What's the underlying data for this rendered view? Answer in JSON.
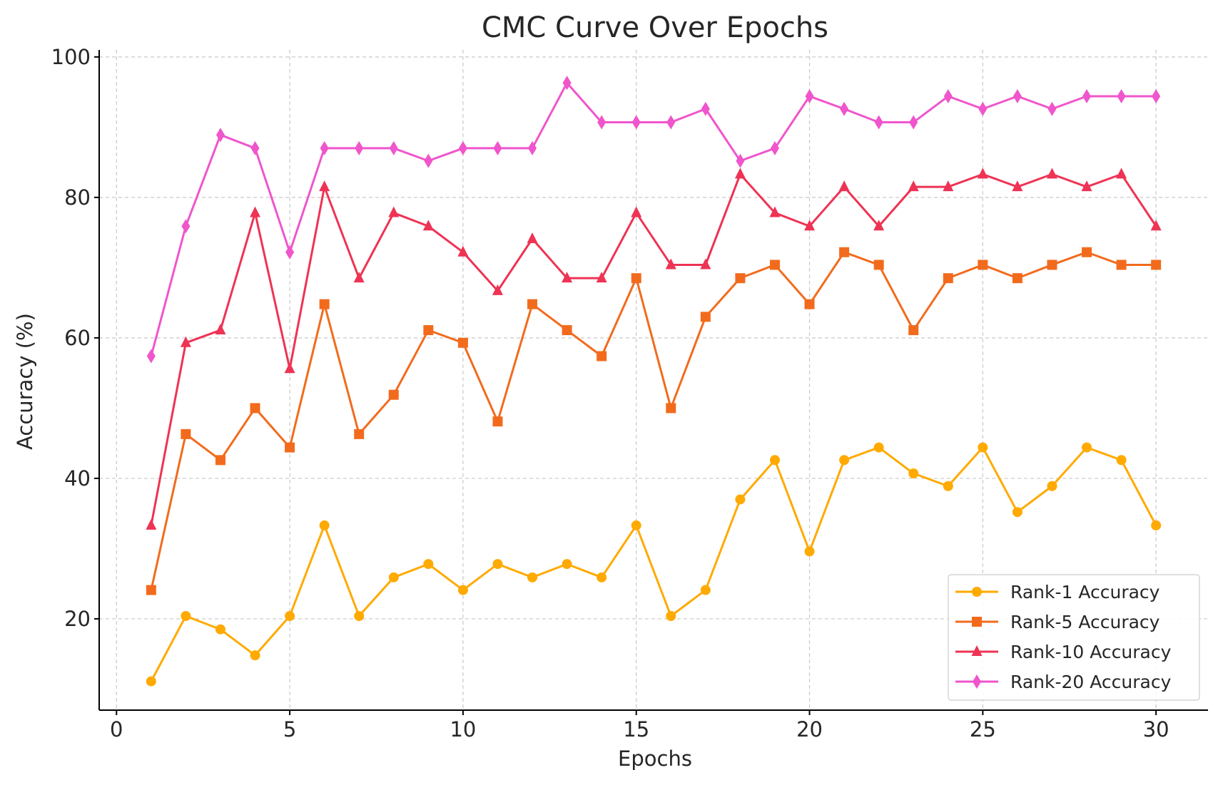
{
  "chart_data": {
    "type": "line",
    "title": "CMC Curve Over Epochs",
    "xlabel": "Epochs",
    "ylabel": "Accuracy (%)",
    "xlim": [
      -0.5,
      31.5
    ],
    "ylim": [
      7,
      101
    ],
    "xticks": [
      0,
      5,
      10,
      15,
      20,
      25,
      30
    ],
    "yticks": [
      20,
      40,
      60,
      80,
      100
    ],
    "grid": true,
    "legend_position": "lower-right",
    "x": [
      1,
      2,
      3,
      4,
      5,
      6,
      7,
      8,
      9,
      10,
      11,
      12,
      13,
      14,
      15,
      16,
      17,
      18,
      19,
      20,
      21,
      22,
      23,
      24,
      25,
      26,
      27,
      28,
      29,
      30
    ],
    "series": [
      {
        "name": "Rank-1 Accuracy",
        "color": "#FFAA00",
        "marker": "circle",
        "values": [
          11.1,
          20.4,
          18.5,
          14.8,
          20.4,
          33.3,
          20.4,
          25.9,
          27.8,
          24.1,
          27.8,
          25.9,
          27.8,
          25.9,
          33.3,
          20.4,
          24.1,
          37.0,
          42.6,
          29.6,
          42.6,
          44.4,
          40.7,
          38.9,
          44.4,
          35.2,
          38.9,
          44.4,
          42.6,
          33.3
        ]
      },
      {
        "name": "Rank-5 Accuracy",
        "color": "#F26B1D",
        "marker": "square",
        "values": [
          24.1,
          46.3,
          42.6,
          50.0,
          44.4,
          64.8,
          46.3,
          51.9,
          61.1,
          59.3,
          48.1,
          64.8,
          61.1,
          57.4,
          68.5,
          50.0,
          63.0,
          68.5,
          70.4,
          64.8,
          72.2,
          70.4,
          61.1,
          68.5,
          70.4,
          68.5,
          70.4,
          72.2,
          70.4,
          70.4
        ]
      },
      {
        "name": "Rank-10 Accuracy",
        "color": "#EE3354",
        "marker": "triangle",
        "values": [
          33.3,
          59.3,
          61.1,
          77.8,
          55.6,
          81.5,
          68.5,
          77.8,
          75.9,
          72.2,
          66.7,
          74.1,
          68.5,
          68.5,
          77.8,
          70.4,
          70.4,
          83.3,
          77.8,
          75.9,
          81.5,
          75.9,
          81.5,
          81.5,
          83.3,
          81.5,
          83.3,
          81.5,
          83.3,
          75.9
        ]
      },
      {
        "name": "Rank-20 Accuracy",
        "color": "#F055CC",
        "marker": "diamond",
        "values": [
          57.4,
          75.9,
          88.9,
          87.0,
          72.2,
          87.0,
          87.0,
          87.0,
          85.2,
          87.0,
          87.0,
          87.0,
          96.3,
          90.7,
          90.7,
          90.7,
          92.6,
          85.2,
          87.0,
          94.4,
          92.6,
          90.7,
          90.7,
          94.4,
          92.6,
          94.4,
          92.6,
          94.4,
          94.4,
          94.4
        ]
      }
    ]
  }
}
